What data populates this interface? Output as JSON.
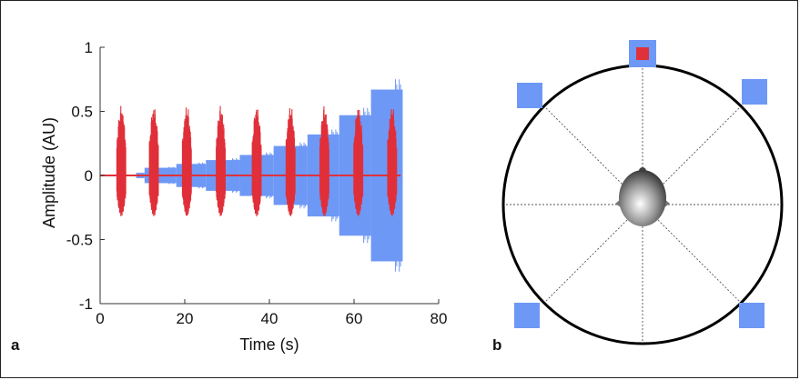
{
  "panel_a": {
    "label": "a",
    "colors": {
      "sustained": "#6e98f5",
      "bursts": "#e0303a"
    }
  },
  "panel_b": {
    "label": "b",
    "colors": {
      "speaker": "#6e98f5",
      "active_speaker": "#e0303a",
      "circle": "#000000",
      "spokes": "#555555"
    }
  },
  "chart_data": {
    "type": "line",
    "xlabel": "Time (s)",
    "ylabel": "Amplitude (AU)",
    "xlim": [
      0,
      80
    ],
    "ylim": [
      -1,
      1
    ],
    "xticks": [
      "0",
      "20",
      "40",
      "60",
      "80"
    ],
    "yticks": [
      "1",
      "0.5",
      "0",
      "-0.5",
      "-1"
    ],
    "grid": false,
    "series": [
      {
        "segments_x": [
          [
            8.5,
            10.5
          ],
          [
            10.5,
            18
          ],
          [
            18,
            25
          ],
          [
            25,
            33
          ],
          [
            33,
            41
          ],
          [
            41,
            49
          ],
          [
            49,
            56.5
          ],
          [
            56.5,
            64
          ],
          [
            64,
            71.5
          ]
        ],
        "amplitudes": [
          0.02,
          0.06,
          0.09,
          0.12,
          0.16,
          0.23,
          0.32,
          0.47,
          0.67
        ]
      },
      {
        "burst_centers_x": [
          5,
          12.7,
          20.5,
          28.5,
          37,
          45,
          53,
          61,
          69
        ],
        "burst_amplitude": [
          0.55,
          0.32
        ]
      }
    ]
  }
}
